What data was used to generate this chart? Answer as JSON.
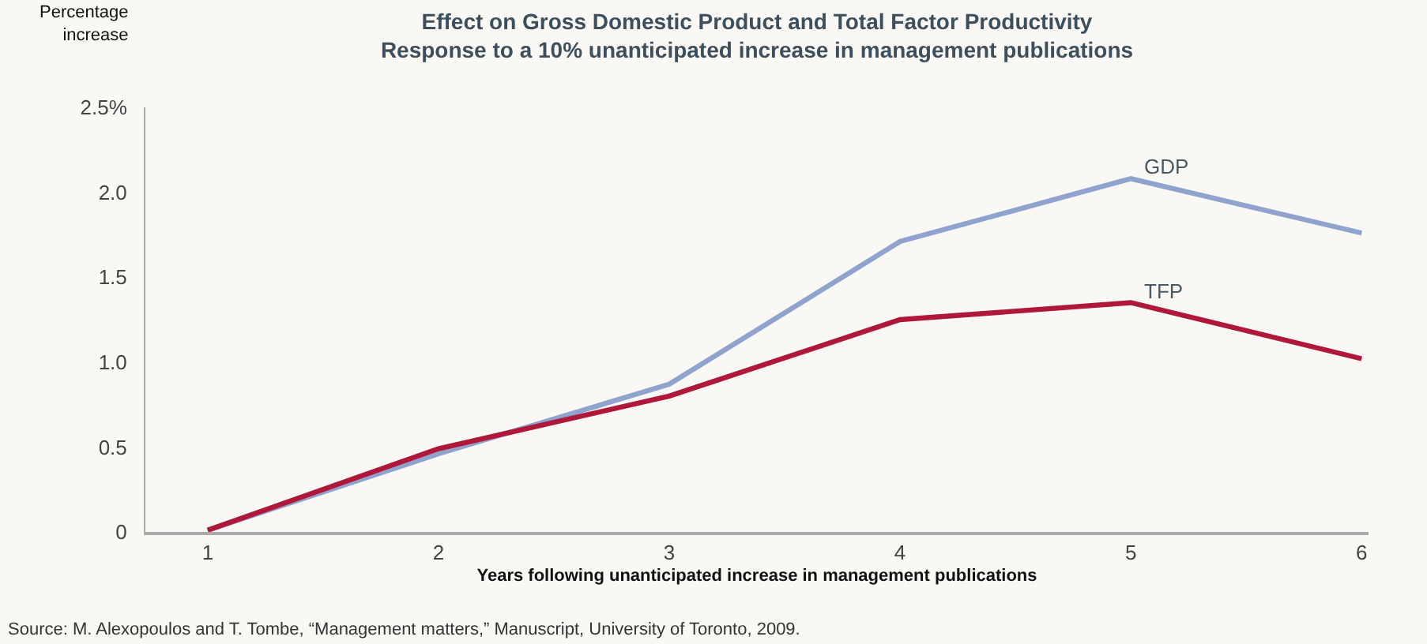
{
  "chart_data": {
    "type": "line",
    "title": "Effect on Gross Domestic Product and Total Factor Productivity",
    "subtitle": "Response to a 10% unanticipated increase in management publications",
    "ylabel": "Percentage increase",
    "xlabel": "Years following unanticipated increase in management publications",
    "annotations": [
      "Source: M. Alexopoulos and T. Tombe, “Management matters,” Manuscript, University of Toronto, 2009."
    ],
    "x": [
      1,
      2,
      3,
      4,
      5,
      6
    ],
    "series": [
      {
        "name": "GDP",
        "color": "#8fa3cf",
        "values": [
          0.01,
          0.46,
          0.87,
          1.71,
          2.08,
          1.76
        ]
      },
      {
        "name": "TFP",
        "color": "#b0183a",
        "values": [
          0.01,
          0.49,
          0.8,
          1.25,
          1.35,
          1.02
        ]
      }
    ],
    "xlim": [
      0.73,
      6.03
    ],
    "xticks": [
      1,
      2,
      3,
      4,
      5,
      6
    ],
    "ylim": [
      0,
      2.5
    ],
    "yticks": [
      0,
      0.5,
      {
        "value": 1,
        "label": "1.0"
      },
      1.5,
      {
        "value": 2,
        "label": "2.0"
      },
      {
        "value": 2.5,
        "label": "2.5%"
      }
    ],
    "grid": false,
    "legend": false,
    "marker": "none",
    "line_style": "solid"
  }
}
